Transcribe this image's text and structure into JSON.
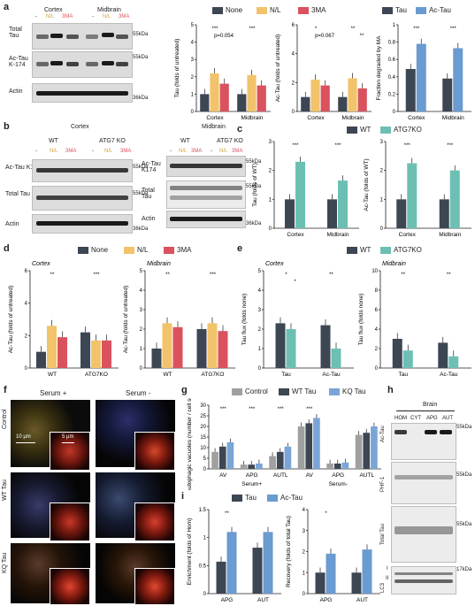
{
  "panels": {
    "a": "a",
    "b": "b",
    "c": "c",
    "d": "d",
    "e": "e",
    "f": "f",
    "g": "g",
    "h": "h",
    "i": "i"
  },
  "colors": {
    "none": "#3d4653",
    "nl": "#f2c36b",
    "3ma": "#d9525e",
    "tau": "#3d4653",
    "actau": "#6a9bd1",
    "wt": "#3d4653",
    "atg7": "#6cc0b3",
    "control": "#a0a0a0",
    "wttau": "#3d4653",
    "kqtau": "#7aa5d6"
  },
  "blot_a": {
    "groups": [
      "Cortex",
      "Midbrain"
    ],
    "lanes": [
      "-",
      "N/L",
      "3MA",
      "-",
      "N/L",
      "3MA"
    ],
    "rows": [
      "Total Tau",
      "Ac-Tau K-174",
      "Actin"
    ],
    "mw": [
      "55kDa",
      "55kDa",
      "36kDa"
    ]
  },
  "blot_b_cortex": {
    "title": "Cortex",
    "genotypes": [
      "WT",
      "ATG7 KO"
    ],
    "lanes": [
      "-",
      "N/L",
      "3MA",
      "-",
      "N/L",
      "3MA"
    ],
    "rows": [
      "Ac-Tau K174",
      "Total Tau",
      "Actin"
    ],
    "mw": [
      "55kDa",
      "55kDa",
      "36kDa"
    ]
  },
  "blot_b_midbrain": {
    "title": "Midbrain",
    "genotypes": [
      "WT",
      "ATG7 KO"
    ],
    "lanes": [
      "-",
      "N/L",
      "3MA",
      "-",
      "N/L",
      "3MA"
    ],
    "rows": [
      "Ac-Tau K174",
      "Total Tau",
      "Actin"
    ],
    "mw": [
      "55kDa",
      "55kDa",
      "36kDa"
    ]
  },
  "blot_h": {
    "title": "Brain",
    "lanes": [
      "HOM",
      "CYT",
      "APG",
      "AUT"
    ],
    "rows": [
      "Ac-Tau",
      "PHF-1",
      "Total Tau",
      "LC3"
    ],
    "mw": [
      "55kDa",
      "55kDa",
      "55kDa",
      "17kDa"
    ],
    "lc3_marks": [
      "I",
      "II"
    ]
  },
  "legend_a": [
    "None",
    "N/L",
    "3MA"
  ],
  "legend_a2": [
    "Tau",
    "Ac-Tau"
  ],
  "legend_c": [
    "WT",
    "ATG7KO"
  ],
  "legend_d": [
    "None",
    "N/L",
    "3MA"
  ],
  "legend_e": [
    "WT",
    "ATG7KO"
  ],
  "legend_g": [
    "Control",
    "WT Tau",
    "KQ Tau"
  ],
  "legend_i": [
    "Tau",
    "Ac-Tau"
  ],
  "micrograph": {
    "cols": [
      "Serum +",
      "Serum -"
    ],
    "rows": [
      "Control",
      "WT Tau",
      "KQ Tau"
    ],
    "scale_main": "10 μm",
    "scale_inset": "5 μm"
  },
  "chart_data": [
    {
      "id": "a1",
      "type": "bar",
      "ylabel": "Tau (folds of untreated)",
      "categories": [
        "Cortex",
        "Midbrain"
      ],
      "ylim": [
        0,
        5
      ],
      "yticks": [
        0,
        1,
        2,
        3,
        4,
        5
      ],
      "series": [
        {
          "name": "None",
          "values": [
            1.0,
            1.0
          ]
        },
        {
          "name": "N/L",
          "values": [
            2.2,
            2.1
          ]
        },
        {
          "name": "3MA",
          "values": [
            1.6,
            1.5
          ]
        }
      ],
      "annotations": [
        "***",
        "***",
        "p=0.054"
      ]
    },
    {
      "id": "a2",
      "type": "bar",
      "ylabel": "Ac-Tau (folds of untreated)",
      "categories": [
        "Cortex",
        "Midbrain"
      ],
      "ylim": [
        0,
        6
      ],
      "yticks": [
        0,
        2,
        4,
        6
      ],
      "series": [
        {
          "name": "None",
          "values": [
            1.0,
            1.0
          ]
        },
        {
          "name": "N/L",
          "values": [
            2.2,
            2.3
          ]
        },
        {
          "name": "3MA",
          "values": [
            1.8,
            1.6
          ]
        }
      ],
      "annotations": [
        "*",
        "**",
        "p=0.067",
        "**"
      ]
    },
    {
      "id": "a3",
      "type": "bar",
      "ylabel": "Fraction degraded by MA",
      "categories": [
        "Cortex",
        "Midbrain"
      ],
      "ylim": [
        0,
        1.0
      ],
      "yticks": [
        0.0,
        0.2,
        0.4,
        0.6,
        0.8,
        1.0
      ],
      "series": [
        {
          "name": "Tau",
          "values": [
            0.49,
            0.38
          ]
        },
        {
          "name": "Ac-Tau",
          "values": [
            0.78,
            0.73
          ]
        }
      ],
      "annotations": [
        "***",
        "***"
      ]
    },
    {
      "id": "c1",
      "type": "bar",
      "ylabel": "Tau (folds of WT)",
      "categories": [
        "Cortex",
        "Midbrain"
      ],
      "ylim": [
        0,
        3
      ],
      "yticks": [
        0,
        1,
        2,
        3
      ],
      "series": [
        {
          "name": "WT",
          "values": [
            1.0,
            1.0
          ]
        },
        {
          "name": "ATG7KO",
          "values": [
            2.3,
            1.65
          ]
        }
      ],
      "annotations": [
        "***",
        "***"
      ]
    },
    {
      "id": "c2",
      "type": "bar",
      "ylabel": "Ac-Tau (folds of WT)",
      "categories": [
        "Cortex",
        "Midbrain"
      ],
      "ylim": [
        0,
        3
      ],
      "yticks": [
        0,
        1,
        2,
        3
      ],
      "series": [
        {
          "name": "WT",
          "values": [
            1.0,
            1.0
          ]
        },
        {
          "name": "ATG7KO",
          "values": [
            2.25,
            2.0
          ]
        }
      ],
      "annotations": [
        "***",
        "***"
      ]
    },
    {
      "id": "d1",
      "type": "bar",
      "title": "Cortex",
      "ylabel": "Ac-Tau (folds of untreated)",
      "categories": [
        "WT",
        "ATG7KO"
      ],
      "ylim": [
        0,
        6
      ],
      "yticks": [
        0,
        2,
        4,
        6
      ],
      "series": [
        {
          "name": "None",
          "values": [
            1.0,
            2.2
          ]
        },
        {
          "name": "N/L",
          "values": [
            2.6,
            1.7
          ]
        },
        {
          "name": "3MA",
          "values": [
            1.9,
            1.7
          ]
        }
      ],
      "annotations": [
        "**",
        "***"
      ]
    },
    {
      "id": "d2",
      "type": "bar",
      "title": "Midbrain",
      "ylabel": "Ac-Tau (folds of untreated)",
      "categories": [
        "WT",
        "ATG7KO"
      ],
      "ylim": [
        0,
        5
      ],
      "yticks": [
        0,
        1,
        2,
        3,
        4,
        5
      ],
      "series": [
        {
          "name": "None",
          "values": [
            1.0,
            2.0
          ]
        },
        {
          "name": "N/L",
          "values": [
            2.3,
            2.3
          ]
        },
        {
          "name": "3MA",
          "values": [
            2.1,
            1.9
          ]
        }
      ],
      "annotations": [
        "**",
        "***"
      ]
    },
    {
      "id": "e1",
      "type": "bar",
      "title": "Cortex",
      "ylabel": "Tau flux (folds none)",
      "categories": [
        "Tau",
        "Ac-Tau"
      ],
      "ylim": [
        0,
        5
      ],
      "yticks": [
        0,
        1,
        2,
        3,
        4,
        5
      ],
      "series": [
        {
          "name": "WT",
          "values": [
            2.3,
            2.2
          ]
        },
        {
          "name": "ATG7KO",
          "values": [
            2.0,
            1.0
          ]
        }
      ],
      "annotations": [
        "*",
        "**",
        "*"
      ]
    },
    {
      "id": "e2",
      "type": "bar",
      "title": "Midbrain",
      "ylabel": "Tau flux (folds none)",
      "categories": [
        "Tau",
        "Ac-Tau"
      ],
      "ylim": [
        0,
        10
      ],
      "yticks": [
        0,
        2,
        4,
        6,
        8,
        10
      ],
      "series": [
        {
          "name": "WT",
          "values": [
            3.0,
            2.6
          ]
        },
        {
          "name": "ATG7KO",
          "values": [
            1.8,
            1.2
          ]
        }
      ],
      "annotations": [
        "**",
        "**"
      ]
    },
    {
      "id": "g",
      "type": "bar",
      "ylabel": "Autophagic vacuoles (number / cell section)",
      "categories": [
        "AV",
        "APG",
        "AUTL",
        "AV",
        "APG",
        "AUTL"
      ],
      "groups": [
        "Serum+",
        "Serum-"
      ],
      "ylim": [
        0,
        30
      ],
      "yticks": [
        0,
        5,
        10,
        15,
        20,
        25,
        30
      ],
      "series": [
        {
          "name": "Control",
          "values": [
            8,
            2,
            6,
            20,
            2.5,
            16
          ]
        },
        {
          "name": "WT Tau",
          "values": [
            10.5,
            2,
            8,
            21.5,
            2.5,
            17
          ]
        },
        {
          "name": "KQ Tau",
          "values": [
            12.5,
            2.5,
            10.5,
            24,
            3,
            20
          ]
        }
      ],
      "annotations": [
        "***",
        "***",
        "***",
        "***"
      ]
    },
    {
      "id": "i1",
      "type": "bar",
      "ylabel": "Enrichment (folds of Hom)",
      "categories": [
        "APG",
        "AUT"
      ],
      "ylim": [
        0,
        1.5
      ],
      "yticks": [
        0.0,
        0.5,
        1.0,
        1.5
      ],
      "series": [
        {
          "name": "Tau",
          "values": [
            0.57,
            0.82
          ]
        },
        {
          "name": "Ac-Tau",
          "values": [
            1.1,
            1.1
          ]
        }
      ],
      "annotations": [
        "**"
      ]
    },
    {
      "id": "i2",
      "type": "bar",
      "ylabel": "Recovery (folds of total Tau)",
      "categories": [
        "APG",
        "AUT"
      ],
      "ylim": [
        0,
        4
      ],
      "yticks": [
        0,
        1,
        2,
        3,
        4
      ],
      "series": [
        {
          "name": "Tau",
          "values": [
            1.0,
            1.0
          ]
        },
        {
          "name": "Ac-Tau",
          "values": [
            1.9,
            2.1
          ]
        }
      ],
      "annotations": [
        "*"
      ]
    }
  ]
}
